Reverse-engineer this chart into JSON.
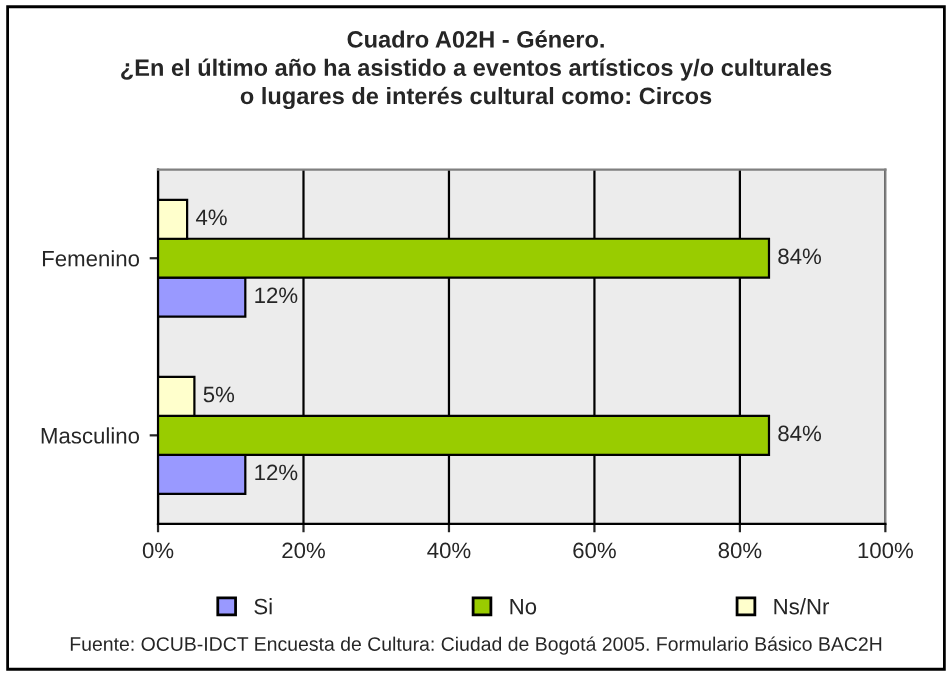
{
  "chart_data": {
    "type": "bar",
    "orientation": "horizontal",
    "title": "Cuadro A02H - Género.\n¿En el último año ha asistido a eventos artísticos y/o culturales\no lugares de interés cultural como: Circos",
    "categories": [
      "Femenino",
      "Masculino"
    ],
    "series": [
      {
        "name": "Si",
        "color": "#9999ff",
        "values": [
          12,
          12
        ],
        "value_labels": [
          "12%",
          "12%"
        ]
      },
      {
        "name": "No",
        "color": "#99cc00",
        "values": [
          84,
          84
        ],
        "value_labels": [
          "84%",
          "84%"
        ]
      },
      {
        "name": "Ns/Nr",
        "color": "#ffffcc",
        "values": [
          4,
          5
        ],
        "value_labels": [
          "4%",
          "5%"
        ]
      }
    ],
    "xlim": [
      0,
      100
    ],
    "xticks": [
      {
        "value": 0,
        "label": "0%"
      },
      {
        "value": 20,
        "label": "20%"
      },
      {
        "value": 40,
        "label": "40%"
      },
      {
        "value": 60,
        "label": "60%"
      },
      {
        "value": 80,
        "label": "80%"
      },
      {
        "value": 100,
        "label": "100%"
      }
    ],
    "grid": "x",
    "legend": "bottom",
    "annotations": [
      "Fuente: OCUB-IDCT Encuesta de Cultura: Ciudad de Bogotá 2005. Formulario Básico BAC2H"
    ]
  }
}
